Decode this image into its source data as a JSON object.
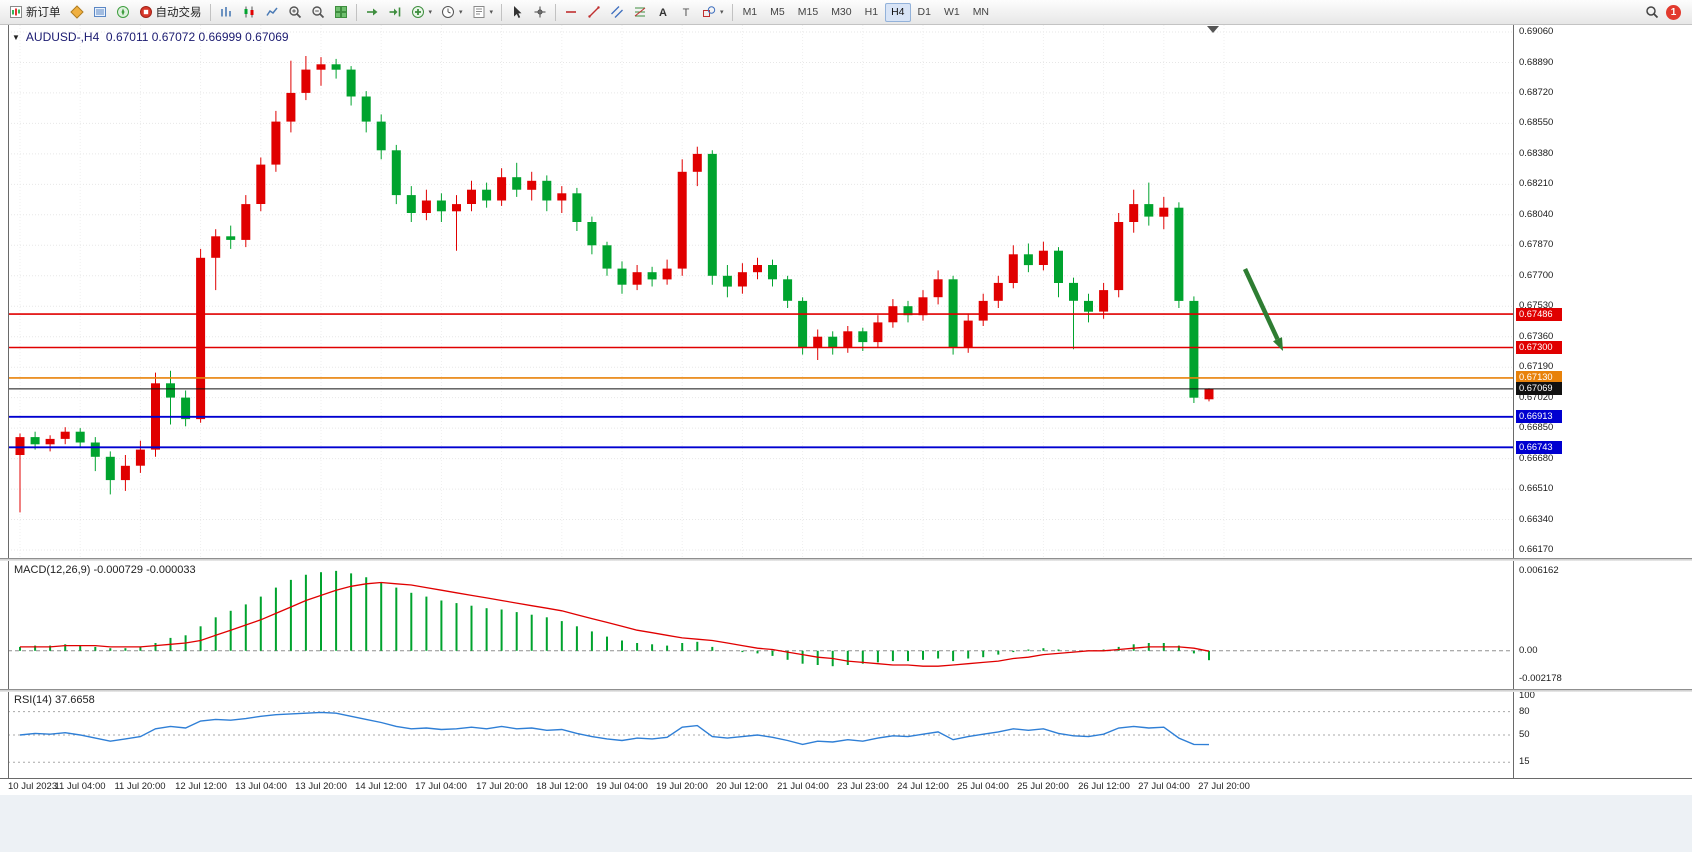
{
  "toolbar": {
    "items": [
      {
        "name": "new-order-button",
        "icon": "new-order-icon",
        "label": "新订单"
      },
      {
        "name": "market-watch-button",
        "icon": "market-watch-icon"
      },
      {
        "name": "data-window-button",
        "icon": "data-window-icon"
      },
      {
        "name": "navigator-button",
        "icon": "navigator-icon"
      },
      {
        "name": "autotrade-button",
        "icon": "autotrade-icon",
        "label": "自动交易"
      },
      {
        "sep": true
      },
      {
        "name": "bar-chart-button",
        "icon": "bar-chart-icon"
      },
      {
        "name": "candle-chart-button",
        "icon": "candle-chart-icon"
      },
      {
        "name": "line-chart-button",
        "icon": "line-chart-icon"
      },
      {
        "name": "zoom-in-button",
        "icon": "zoom-in-icon"
      },
      {
        "name": "zoom-out-button",
        "icon": "zoom-out-icon"
      },
      {
        "name": "tile-windows-button",
        "icon": "tile-windows-icon"
      },
      {
        "sep": true
      },
      {
        "name": "auto-scroll-button",
        "icon": "auto-scroll-icon"
      },
      {
        "name": "chart-shift-button",
        "icon": "chart-shift-icon"
      },
      {
        "name": "indicators-button",
        "icon": "indicators-icon",
        "caret": true
      },
      {
        "name": "periods-button",
        "icon": "clock-icon",
        "caret": true
      },
      {
        "name": "templates-button",
        "icon": "template-icon",
        "caret": true
      },
      {
        "sep": true
      },
      {
        "name": "cursor-button",
        "icon": "cursor-icon"
      },
      {
        "name": "crosshair-button",
        "icon": "crosshair-icon"
      },
      {
        "sep": true
      },
      {
        "name": "hline-button",
        "icon": "hline-icon"
      },
      {
        "name": "trendline-button",
        "icon": "trendline-icon"
      },
      {
        "name": "channel-button",
        "icon": "channel-icon"
      },
      {
        "name": "fibo-button",
        "icon": "fibo-icon"
      },
      {
        "name": "text-button",
        "icon": "text-icon"
      },
      {
        "name": "label-button",
        "icon": "label-icon"
      },
      {
        "name": "shapes-button",
        "icon": "shapes-icon",
        "caret": true
      },
      {
        "sep": true
      }
    ],
    "timeframes": [
      {
        "label": "M1"
      },
      {
        "label": "M5"
      },
      {
        "label": "M15"
      },
      {
        "label": "M30"
      },
      {
        "label": "H1"
      },
      {
        "label": "H4",
        "active": true
      },
      {
        "label": "D1"
      },
      {
        "label": "W1"
      },
      {
        "label": "MN"
      }
    ],
    "right": {
      "search_icon": "search-icon",
      "badge": "1"
    }
  },
  "chart": {
    "quote_line": "AUDUSD-,H4  0.67011 0.67072 0.66999 0.67069",
    "price_axis": {
      "ticks": [
        "0.69060",
        "0.68890",
        "0.68720",
        "0.68550",
        "0.68380",
        "0.68210",
        "0.68040",
        "0.67870",
        "0.67700",
        "0.67530",
        "0.67360",
        "0.67190",
        "0.67020",
        "0.66850",
        "0.66680",
        "0.66510",
        "0.66340",
        "0.66170"
      ]
    },
    "time_axis": {
      "labels": [
        "10 Jul 2023",
        "11 Jul 04:00",
        "11 Jul 20:00",
        "12 Jul 12:00",
        "13 Jul 04:00",
        "13 Jul 20:00",
        "14 Jul 12:00",
        "17 Jul 04:00",
        "17 Jul 20:00",
        "18 Jul 12:00",
        "19 Jul 04:00",
        "19 Jul 20:00",
        "20 Jul 12:00",
        "21 Jul 04:00",
        "23 Jul 23:00",
        "24 Jul 12:00",
        "25 Jul 04:00",
        "25 Jul 20:00",
        "26 Jul 12:00",
        "27 Jul 04:00",
        "27 Jul 20:00"
      ]
    },
    "levels": [
      {
        "value": 0.67486,
        "label": "0.67486",
        "color": "#e00000",
        "width": 1.6,
        "type": "resistance-line"
      },
      {
        "value": 0.673,
        "label": "0.67300",
        "color": "#e00000",
        "width": 1.6,
        "type": "resistance-line"
      },
      {
        "value": 0.6713,
        "label": "0.67130",
        "color": "#e8820a",
        "width": 1.6,
        "type": "pivot-line"
      },
      {
        "value": 0.66913,
        "label": "0.66913",
        "color": "#0000d0",
        "width": 1.8,
        "type": "support-line"
      },
      {
        "value": 0.66743,
        "label": "0.66743",
        "color": "#0000d0",
        "width": 1.8,
        "type": "support-line"
      }
    ],
    "current_price": {
      "value": 0.67069,
      "label": "0.67069",
      "color": "#111111"
    },
    "arrow": {
      "color": "#2e7d32",
      "direction": "down-right"
    }
  },
  "chart_data": {
    "type": "cand​lestick",
    "symbol": "AUDUSD-",
    "timeframe": "H4",
    "ohlc_display": {
      "open": "0.67011",
      "high": "0.67072",
      "low": "0.66999",
      "close": "0.67069"
    },
    "price_range": [
      0.6617,
      0.6906
    ],
    "x_labels": [
      "10 Jul 2023",
      "11 Jul 04:00",
      "11 Jul 20:00",
      "12 Jul 12:00",
      "13 Jul 04:00",
      "13 Jul 20:00",
      "14 Jul 12:00",
      "17 Jul 04:00",
      "17 Jul 20:00",
      "18 Jul 12:00",
      "19 Jul 04:00",
      "19 Jul 20:00",
      "20 Jul 12:00",
      "21 Jul 04:00",
      "23 Jul 23:00",
      "24 Jul 12:00",
      "25 Jul 04:00",
      "25 Jul 20:00",
      "26 Jul 12:00",
      "27 Jul 04:00",
      "27 Jul 20:00"
    ],
    "candles": [
      [
        0.667,
        0.6682,
        0.6638,
        0.668
      ],
      [
        0.668,
        0.6683,
        0.6673,
        0.6676
      ],
      [
        0.6676,
        0.6681,
        0.6672,
        0.6679
      ],
      [
        0.6679,
        0.66855,
        0.6676,
        0.6683
      ],
      [
        0.6683,
        0.6685,
        0.6674,
        0.6677
      ],
      [
        0.6677,
        0.668,
        0.6661,
        0.6669
      ],
      [
        0.6669,
        0.6672,
        0.6648,
        0.6656
      ],
      [
        0.6656,
        0.667,
        0.665,
        0.6664
      ],
      [
        0.6664,
        0.6678,
        0.666,
        0.6673
      ],
      [
        0.6673,
        0.6716,
        0.6669,
        0.671
      ],
      [
        0.671,
        0.6717,
        0.6687,
        0.6702
      ],
      [
        0.6702,
        0.6706,
        0.6686,
        0.669
      ],
      [
        0.669,
        0.6785,
        0.6688,
        0.678
      ],
      [
        0.678,
        0.6796,
        0.6762,
        0.6792
      ],
      [
        0.6792,
        0.6798,
        0.6785,
        0.679
      ],
      [
        0.679,
        0.6815,
        0.6786,
        0.681
      ],
      [
        0.681,
        0.6836,
        0.6806,
        0.6832
      ],
      [
        0.6832,
        0.6862,
        0.6828,
        0.6856
      ],
      [
        0.6856,
        0.689,
        0.685,
        0.6872
      ],
      [
        0.6872,
        0.68926,
        0.6868,
        0.6885
      ],
      [
        0.6885,
        0.6892,
        0.6876,
        0.6888
      ],
      [
        0.6888,
        0.6891,
        0.688,
        0.6885
      ],
      [
        0.6885,
        0.6887,
        0.6865,
        0.687
      ],
      [
        0.687,
        0.6873,
        0.685,
        0.6856
      ],
      [
        0.6856,
        0.686,
        0.6835,
        0.684
      ],
      [
        0.684,
        0.6843,
        0.681,
        0.6815
      ],
      [
        0.6815,
        0.682,
        0.68,
        0.6805
      ],
      [
        0.6805,
        0.6818,
        0.6801,
        0.6812
      ],
      [
        0.6812,
        0.6816,
        0.68,
        0.6806
      ],
      [
        0.6806,
        0.6815,
        0.6784,
        0.681
      ],
      [
        0.681,
        0.6823,
        0.6806,
        0.6818
      ],
      [
        0.6818,
        0.6822,
        0.6808,
        0.6812
      ],
      [
        0.6812,
        0.683,
        0.6809,
        0.6825
      ],
      [
        0.6825,
        0.6833,
        0.6814,
        0.6818
      ],
      [
        0.6818,
        0.6828,
        0.6812,
        0.6823
      ],
      [
        0.6823,
        0.6826,
        0.6806,
        0.6812
      ],
      [
        0.6812,
        0.682,
        0.6805,
        0.6816
      ],
      [
        0.6816,
        0.6819,
        0.6795,
        0.68
      ],
      [
        0.68,
        0.6803,
        0.6782,
        0.6787
      ],
      [
        0.6787,
        0.6789,
        0.677,
        0.6774
      ],
      [
        0.6774,
        0.6778,
        0.676,
        0.6765
      ],
      [
        0.6765,
        0.6776,
        0.6762,
        0.6772
      ],
      [
        0.6772,
        0.6775,
        0.6764,
        0.6768
      ],
      [
        0.6768,
        0.6779,
        0.6765,
        0.6774
      ],
      [
        0.6774,
        0.6835,
        0.677,
        0.6828
      ],
      [
        0.6828,
        0.6842,
        0.682,
        0.6838
      ],
      [
        0.6838,
        0.684,
        0.6765,
        0.677
      ],
      [
        0.677,
        0.6776,
        0.6758,
        0.6764
      ],
      [
        0.6764,
        0.6777,
        0.676,
        0.6772
      ],
      [
        0.6772,
        0.678,
        0.6768,
        0.6776
      ],
      [
        0.6776,
        0.6779,
        0.6764,
        0.6768
      ],
      [
        0.6768,
        0.677,
        0.6752,
        0.6756
      ],
      [
        0.6756,
        0.6758,
        0.6726,
        0.673
      ],
      [
        0.673,
        0.674,
        0.6723,
        0.6736
      ],
      [
        0.6736,
        0.6739,
        0.6726,
        0.673
      ],
      [
        0.673,
        0.6742,
        0.6727,
        0.6739
      ],
      [
        0.6739,
        0.6741,
        0.6728,
        0.6733
      ],
      [
        0.6733,
        0.6748,
        0.673,
        0.6744
      ],
      [
        0.6744,
        0.6757,
        0.6741,
        0.6753
      ],
      [
        0.6753,
        0.6756,
        0.6744,
        0.6748
      ],
      [
        0.6748,
        0.6762,
        0.6745,
        0.6758
      ],
      [
        0.6758,
        0.6773,
        0.6754,
        0.6768
      ],
      [
        0.6768,
        0.677,
        0.6726,
        0.673
      ],
      [
        0.673,
        0.6749,
        0.6727,
        0.6745
      ],
      [
        0.6745,
        0.676,
        0.6742,
        0.6756
      ],
      [
        0.6756,
        0.677,
        0.6752,
        0.6766
      ],
      [
        0.6766,
        0.6787,
        0.6763,
        0.6782
      ],
      [
        0.6782,
        0.6788,
        0.6772,
        0.6776
      ],
      [
        0.6776,
        0.6789,
        0.6773,
        0.6784
      ],
      [
        0.6784,
        0.6786,
        0.6758,
        0.6766
      ],
      [
        0.6766,
        0.6769,
        0.6729,
        0.6756
      ],
      [
        0.6756,
        0.676,
        0.6744,
        0.675
      ],
      [
        0.675,
        0.6766,
        0.6746,
        0.6762
      ],
      [
        0.6762,
        0.6805,
        0.6758,
        0.68
      ],
      [
        0.68,
        0.6818,
        0.6794,
        0.681
      ],
      [
        0.681,
        0.6822,
        0.6798,
        0.6803
      ],
      [
        0.6803,
        0.6814,
        0.6796,
        0.6808
      ],
      [
        0.6808,
        0.6811,
        0.6752,
        0.6756
      ],
      [
        0.6756,
        0.67585,
        0.6699,
        0.6702
      ],
      [
        0.67011,
        0.67072,
        0.66999,
        0.67069
      ]
    ],
    "levels": [
      0.67486,
      0.673,
      0.6713,
      0.66913,
      0.66743
    ],
    "indicators": {
      "macd": {
        "title": "MACD(12,26,9) -0.000729 -0.000033",
        "name": "MACD(12,26,9)",
        "value": -0.000729,
        "signal_value": -3.3e-05,
        "axis": [
          {
            "label": "0.006162",
            "value": 0.006162
          },
          {
            "label": "0.00",
            "value": 0
          },
          {
            "label": "-0.002178",
            "value": -0.002178
          }
        ],
        "range": [
          -0.0025,
          0.0065
        ],
        "histogram": [
          0.0003,
          0.0004,
          0.0004,
          0.0005,
          0.0004,
          0.0003,
          0.0002,
          0.0002,
          0.0003,
          0.0006,
          0.001,
          0.0012,
          0.0019,
          0.0026,
          0.0031,
          0.0036,
          0.0042,
          0.0049,
          0.0055,
          0.0059,
          0.0061,
          0.0062,
          0.006,
          0.0057,
          0.0053,
          0.0049,
          0.0045,
          0.0042,
          0.0039,
          0.0037,
          0.0035,
          0.0033,
          0.0032,
          0.003,
          0.0028,
          0.0026,
          0.0023,
          0.0019,
          0.0015,
          0.0011,
          0.0008,
          0.0006,
          0.0005,
          0.0004,
          0.0006,
          0.0007,
          0.0003,
          0.0,
          -0.0001,
          -0.0002,
          -0.0004,
          -0.0007,
          -0.001,
          -0.0011,
          -0.0012,
          -0.0011,
          -0.001,
          -0.0009,
          -0.0008,
          -0.0008,
          -0.0007,
          -0.0006,
          -0.0008,
          -0.0006,
          -0.0005,
          -0.0003,
          -0.0001,
          0.0001,
          0.0002,
          0.0001,
          0.0,
          0.0,
          0.0001,
          0.0003,
          0.0005,
          0.0006,
          0.0006,
          0.0004,
          -0.0002,
          -0.000729
        ],
        "signal": [
          0.0003,
          0.0003,
          0.0003,
          0.0004,
          0.0004,
          0.0004,
          0.0003,
          0.0003,
          0.0003,
          0.0004,
          0.0005,
          0.0006,
          0.0008,
          0.0012,
          0.0016,
          0.002,
          0.0024,
          0.0029,
          0.0034,
          0.0039,
          0.0043,
          0.0047,
          0.005,
          0.0052,
          0.0053,
          0.0052,
          0.0051,
          0.0049,
          0.0047,
          0.0045,
          0.0043,
          0.0041,
          0.0039,
          0.0037,
          0.0035,
          0.0033,
          0.0031,
          0.0028,
          0.0025,
          0.0022,
          0.0019,
          0.0016,
          0.0014,
          0.0012,
          0.001,
          0.0009,
          0.0008,
          0.0006,
          0.0004,
          0.0002,
          0.0001,
          -0.0001,
          -0.0003,
          -0.0005,
          -0.0006,
          -0.0008,
          -0.0009,
          -0.001,
          -0.0011,
          -0.0011,
          -0.0012,
          -0.0012,
          -0.0011,
          -0.001,
          -0.0009,
          -0.0008,
          -0.0006,
          -0.0005,
          -0.0003,
          -0.0002,
          -0.0001,
          0.0,
          0.0,
          0.0001,
          0.0002,
          0.0003,
          0.0003,
          0.0003,
          0.0002,
          -3.3e-05
        ]
      },
      "rsi": {
        "title": "RSI(14) 37.6658",
        "name": "RSI(14)",
        "value": 37.6658,
        "axis": [
          {
            "label": "100",
            "value": 100
          },
          {
            "label": "80",
            "value": 80
          },
          {
            "label": "50",
            "value": 50
          },
          {
            "label": "15",
            "value": 15
          }
        ],
        "level_lines": [
          80,
          50,
          15
        ],
        "values": [
          50,
          52,
          51,
          53,
          50,
          46,
          42,
          45,
          48,
          58,
          61,
          59,
          68,
          70,
          69,
          71,
          74,
          76,
          77,
          78,
          79,
          78,
          74,
          70,
          66,
          61,
          58,
          59,
          57,
          58,
          60,
          58,
          61,
          58,
          59,
          56,
          57,
          52,
          48,
          45,
          43,
          46,
          45,
          47,
          60,
          62,
          48,
          46,
          48,
          50,
          47,
          43,
          38,
          42,
          41,
          44,
          42,
          46,
          49,
          48,
          51,
          54,
          44,
          48,
          51,
          54,
          58,
          56,
          58,
          52,
          49,
          48,
          51,
          59,
          61,
          59,
          60,
          46,
          38,
          37.6658
        ]
      }
    },
    "colors": {
      "bull": "#e00000",
      "bear": "#00a32e",
      "macd_histogram": "#00a32e",
      "macd_signal": "#e00000",
      "rsi_line": "#2f7fd6"
    }
  }
}
